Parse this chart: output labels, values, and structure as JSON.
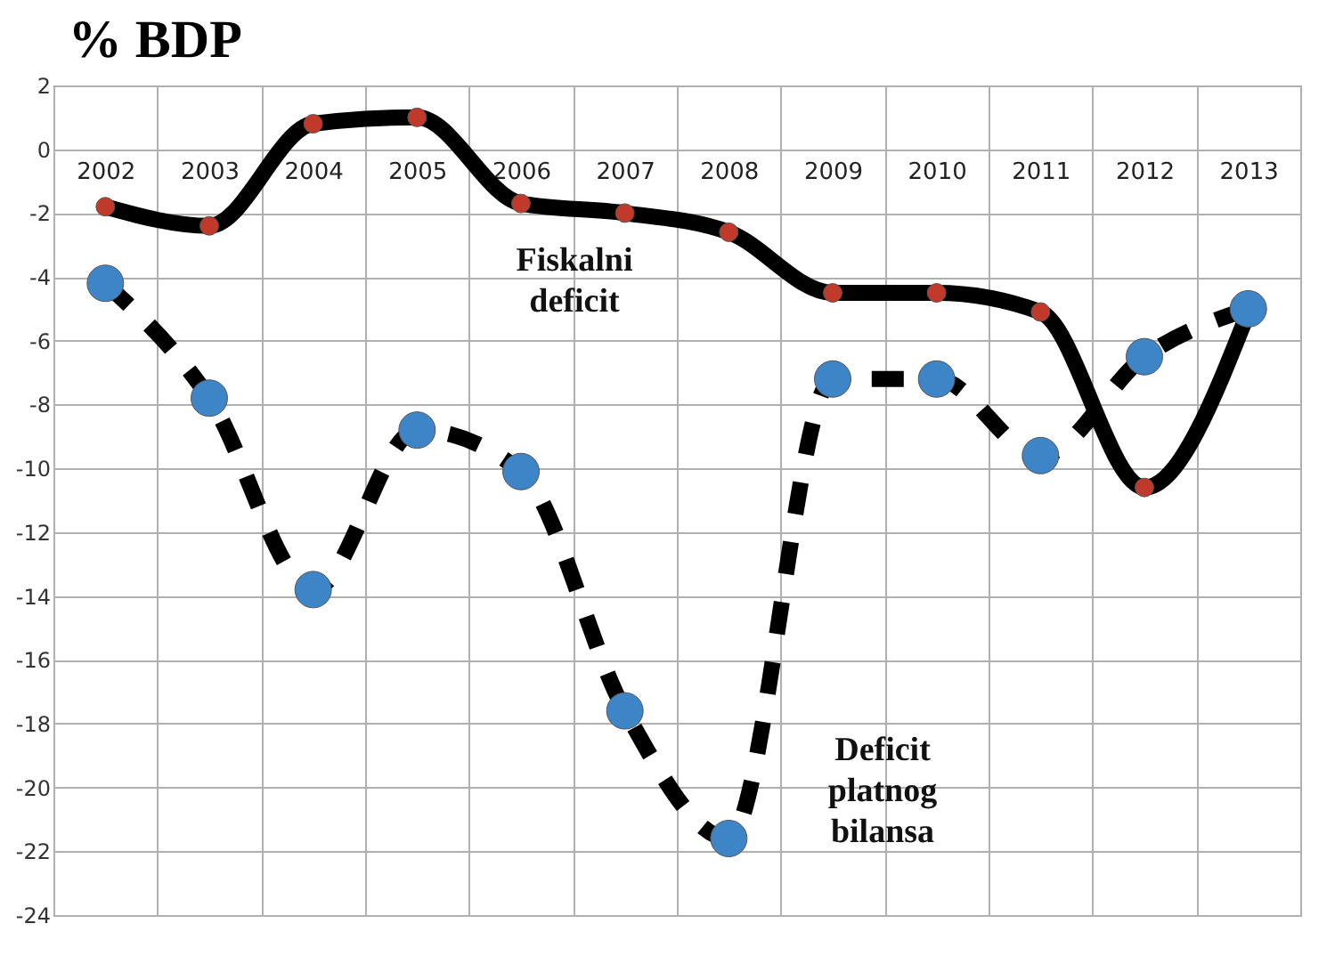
{
  "chart_data": {
    "type": "line",
    "title": "% BDP",
    "categories": [
      "2002",
      "2003",
      "2004",
      "2005",
      "2006",
      "2007",
      "2008",
      "2009",
      "2010",
      "2011",
      "2012",
      "2013"
    ],
    "series": [
      {
        "name": "Fiskalni deficit",
        "color": "#c0392b",
        "line_style": "solid",
        "values": [
          -1.8,
          -2.4,
          0.8,
          1.0,
          -1.7,
          -2.0,
          -2.6,
          -4.5,
          -4.5,
          -5.1,
          -10.6,
          -5.1
        ]
      },
      {
        "name": "Deficit platnog bilansa",
        "color": "#3d85c6",
        "line_style": "dashed",
        "values": [
          -4.2,
          -7.8,
          -13.8,
          -8.8,
          -10.1,
          -17.6,
          -21.6,
          -7.2,
          -7.2,
          -9.6,
          -6.5,
          -5.0
        ]
      }
    ],
    "ylim": [
      -24,
      2
    ],
    "yticks": [
      -24,
      -22,
      -20,
      -18,
      -16,
      -14,
      -12,
      -10,
      -8,
      -6,
      -4,
      -2,
      0,
      2
    ],
    "grid": true,
    "marker": "circle"
  }
}
